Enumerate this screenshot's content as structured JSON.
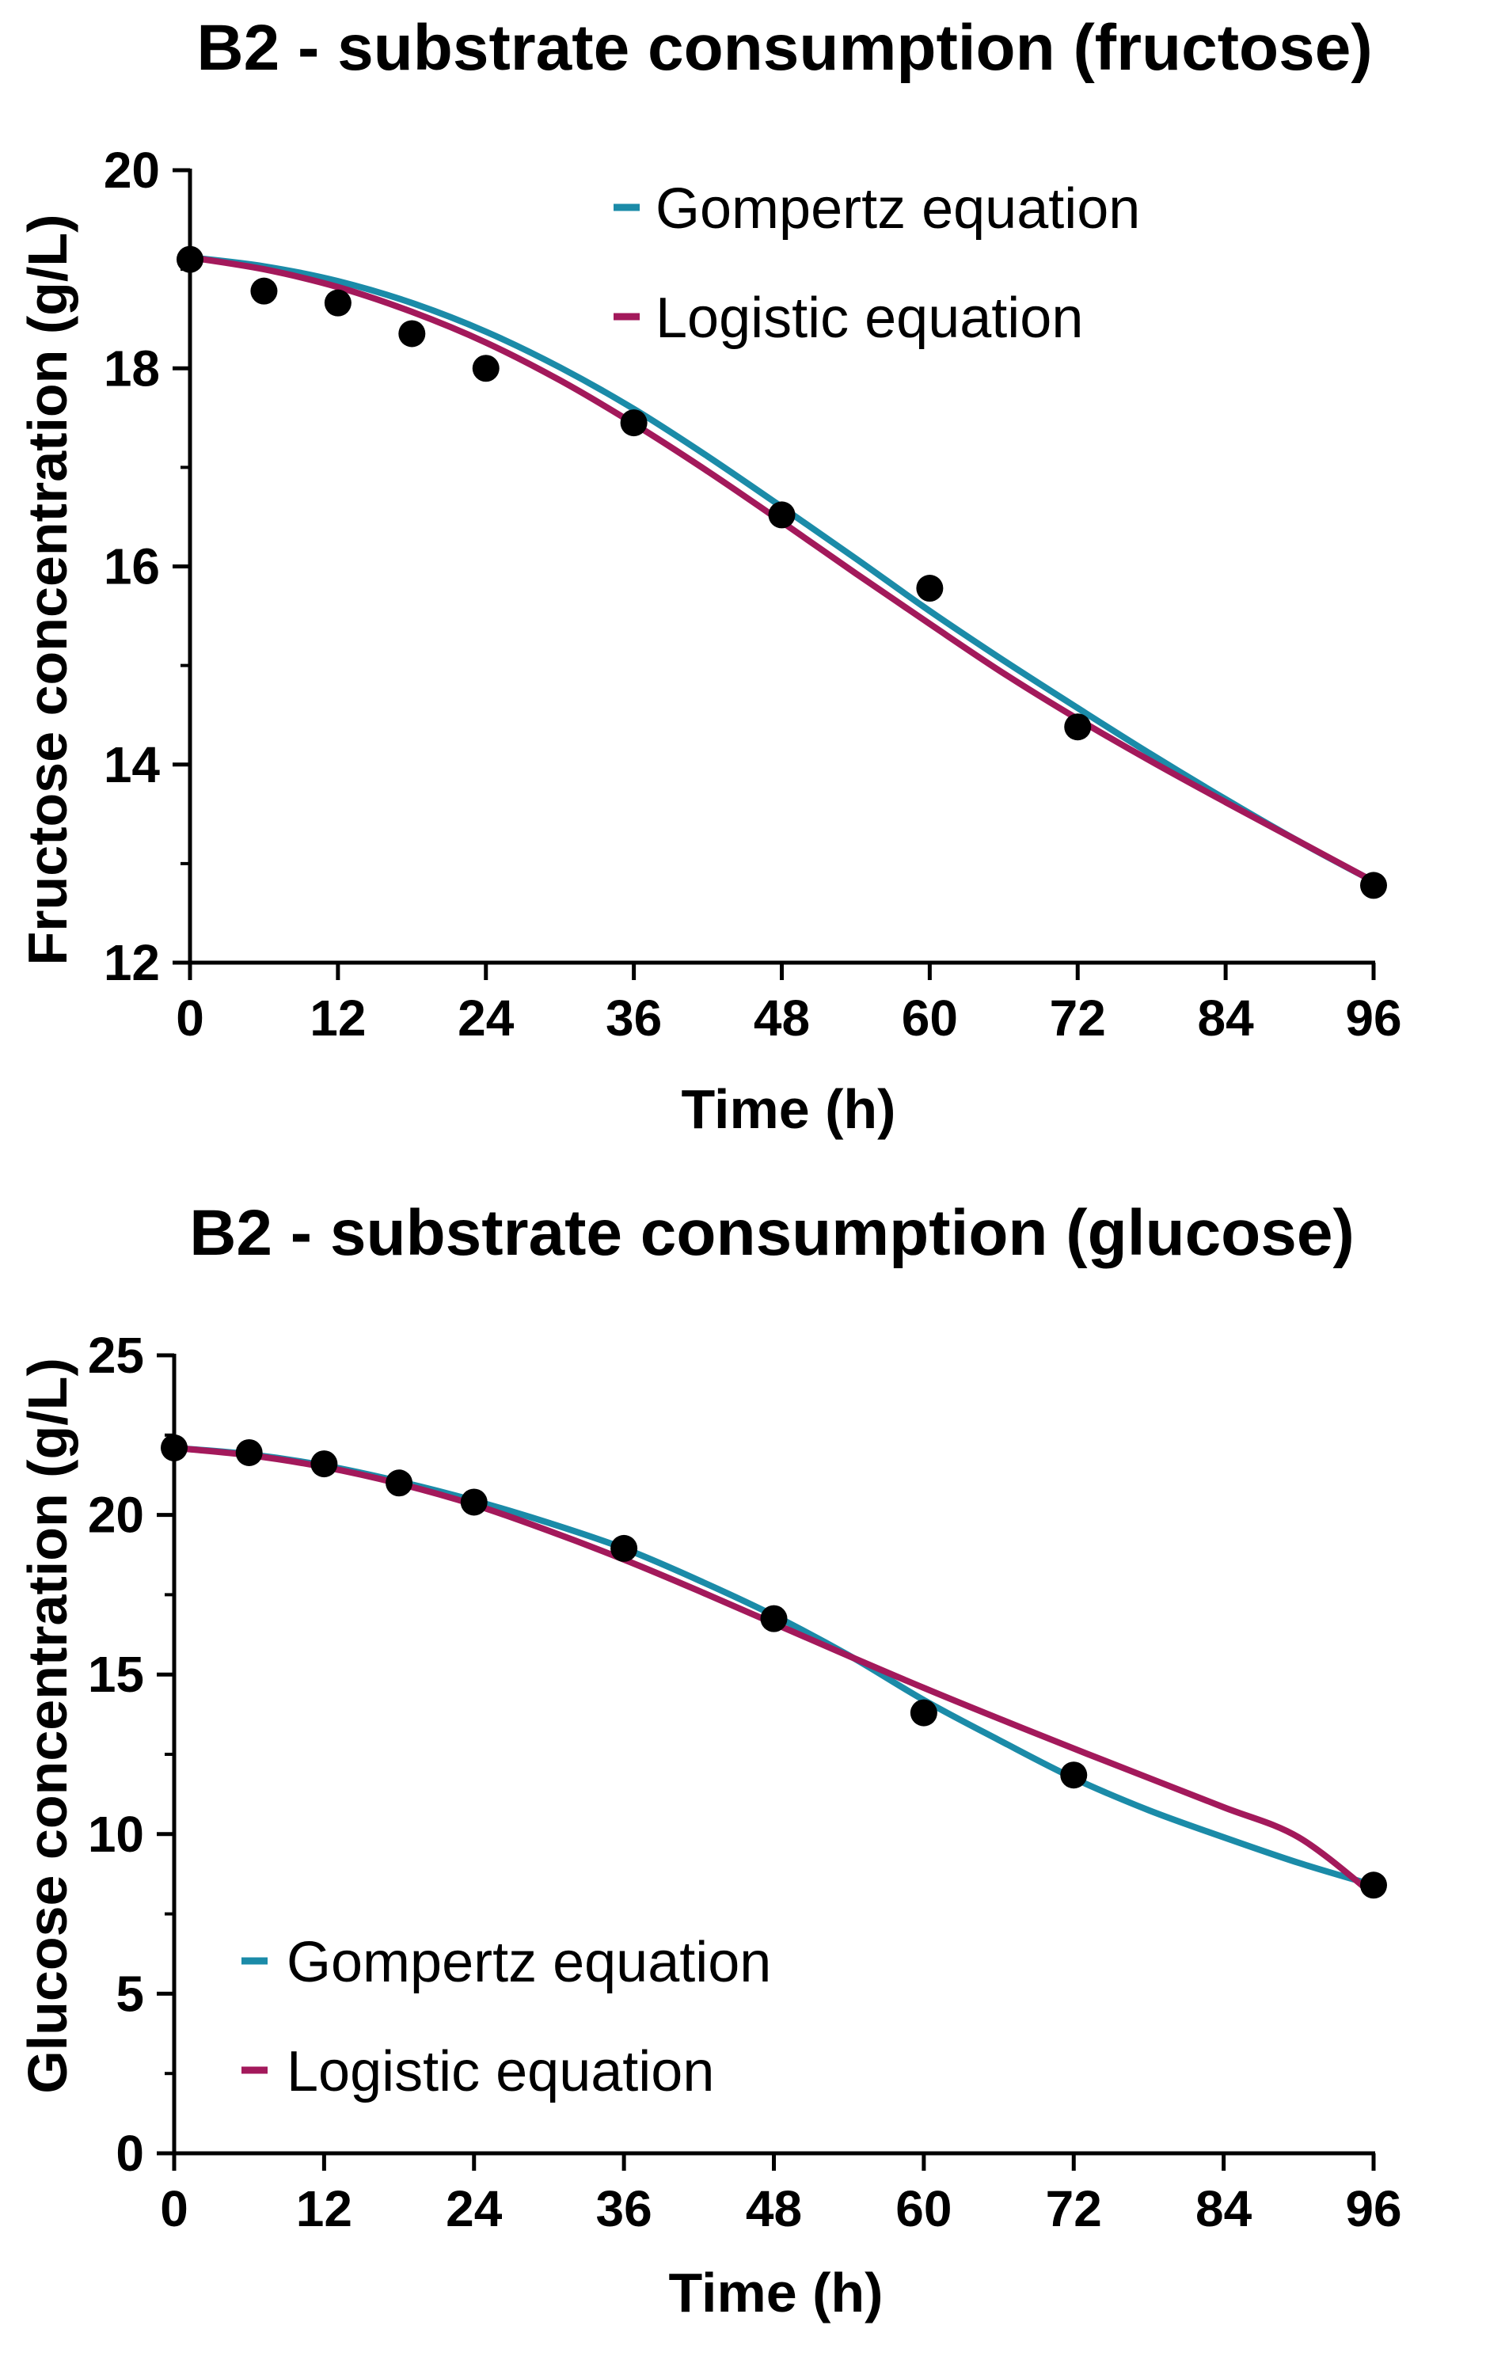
{
  "chart_data": [
    {
      "type": "scatter",
      "title": "B2 - substrate consumption (fructose)",
      "xlabel": "Time (h)",
      "ylabel": "Fructose concentration (g/L)",
      "xlim": [
        0,
        96
      ],
      "ylim": [
        12,
        20
      ],
      "xticks": [
        0,
        12,
        24,
        36,
        48,
        60,
        72,
        84,
        96
      ],
      "yticks": [
        12,
        14,
        16,
        18,
        20
      ],
      "grid": false,
      "legend_position": "top-right",
      "series": [
        {
          "name": "Gompertz equation",
          "kind": "line",
          "color": "#1B8BA8",
          "x": [
            0,
            6,
            12,
            18,
            24,
            30,
            36,
            42,
            48,
            54,
            60,
            66,
            72,
            78,
            84,
            90,
            96
          ],
          "y": [
            19.12,
            19.03,
            18.88,
            18.66,
            18.37,
            18.01,
            17.59,
            17.11,
            16.6,
            16.08,
            15.55,
            15.05,
            14.57,
            14.1,
            13.65,
            13.22,
            12.82
          ]
        },
        {
          "name": "Logistic equation",
          "kind": "line",
          "color": "#A3195B",
          "x": [
            0,
            6,
            12,
            18,
            24,
            30,
            36,
            42,
            48,
            54,
            60,
            66,
            72,
            78,
            84,
            90,
            96
          ],
          "y": [
            19.12,
            19.0,
            18.82,
            18.57,
            18.26,
            17.88,
            17.44,
            16.96,
            16.45,
            15.93,
            15.42,
            14.92,
            14.46,
            14.03,
            13.62,
            13.22,
            12.82
          ]
        },
        {
          "name": "data",
          "kind": "points",
          "color": "#000000",
          "x": [
            0,
            6,
            12,
            18,
            24,
            36,
            48,
            60,
            72,
            96
          ],
          "y": [
            19.1,
            18.78,
            18.66,
            18.35,
            18.0,
            17.45,
            16.52,
            15.78,
            14.38,
            12.78
          ]
        }
      ]
    },
    {
      "type": "scatter",
      "title": "B2 - substrate consumption (glucose)",
      "xlabel": "Time (h)",
      "ylabel": "Glucose concentration (g/L)",
      "xlim": [
        0,
        96
      ],
      "ylim": [
        0,
        25
      ],
      "xticks": [
        0,
        12,
        24,
        36,
        48,
        60,
        72,
        84,
        96
      ],
      "yticks": [
        0,
        5,
        10,
        15,
        20,
        25
      ],
      "grid": false,
      "legend_position": "bottom-left",
      "series": [
        {
          "name": "Gompertz equation",
          "kind": "line",
          "color": "#1B8BA8",
          "x": [
            0,
            6,
            12,
            18,
            24,
            30,
            36,
            42,
            48,
            54,
            60,
            66,
            72,
            78,
            84,
            90,
            96
          ],
          "y": [
            22.1,
            21.9,
            21.55,
            21.05,
            20.45,
            19.75,
            18.95,
            17.95,
            16.85,
            15.6,
            14.2,
            12.95,
            11.75,
            10.75,
            9.9,
            9.1,
            8.4
          ]
        },
        {
          "name": "Logistic equation",
          "kind": "line",
          "color": "#A3195B",
          "x": [
            0,
            6,
            12,
            18,
            24,
            30,
            36,
            42,
            48,
            54,
            60,
            66,
            72,
            78,
            84,
            90,
            96
          ],
          "y": [
            22.1,
            21.87,
            21.5,
            20.98,
            20.32,
            19.5,
            18.6,
            17.62,
            16.6,
            15.58,
            14.58,
            13.62,
            12.68,
            11.76,
            10.84,
            9.9,
            8.1
          ]
        },
        {
          "name": "data",
          "kind": "points",
          "color": "#000000",
          "x": [
            0,
            6,
            12,
            18,
            24,
            36,
            48,
            60,
            72,
            96
          ],
          "y": [
            22.1,
            21.95,
            21.6,
            21.0,
            20.4,
            18.95,
            16.75,
            13.8,
            11.85,
            8.4
          ]
        }
      ]
    }
  ]
}
